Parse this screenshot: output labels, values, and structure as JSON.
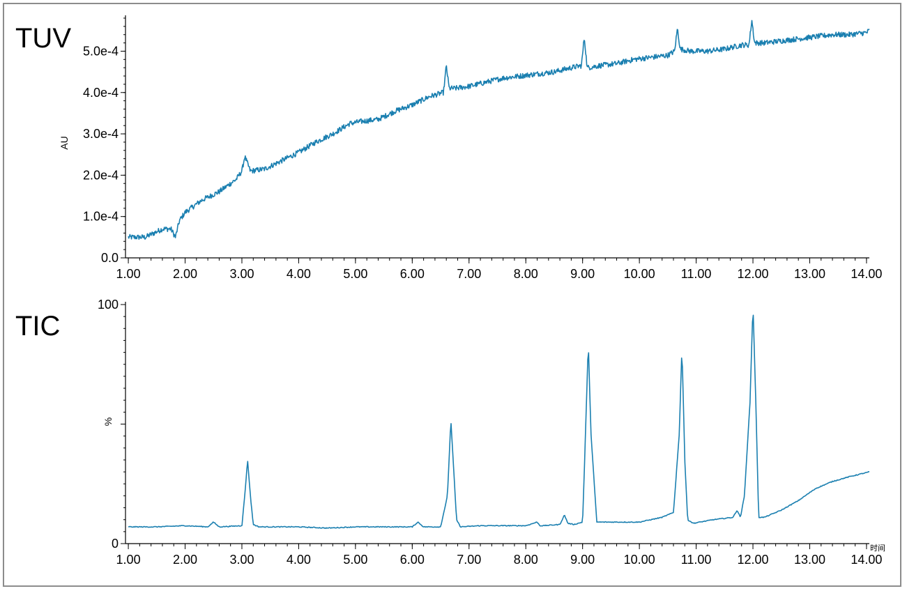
{
  "colors": {
    "trace": "#1a7fb0",
    "axis": "#000000",
    "frame": "#8c8c8c"
  },
  "chart_data": [
    {
      "type": "line",
      "title": "TUV",
      "xlabel": "",
      "ylabel": "AU",
      "xlim": [
        0.95,
        14.05
      ],
      "ylim": [
        0,
        0.00058
      ],
      "x_ticks": [
        1,
        2,
        3,
        4,
        5,
        6,
        7,
        8,
        9,
        10,
        11,
        12,
        13,
        14
      ],
      "x_tick_labels": [
        "1.00",
        "2.00",
        "3.00",
        "4.00",
        "5.00",
        "6.00",
        "7.00",
        "8.00",
        "9.00",
        "10.00",
        "11.00",
        "12.00",
        "13.00",
        "14.00"
      ],
      "y_ticks": [
        0,
        0.0001,
        0.0002,
        0.0003,
        0.0004,
        0.0005
      ],
      "y_tick_labels": [
        "0.0",
        "1.0e-4",
        "2.0e-4",
        "3.0e-4",
        "4.0e-4",
        "5.0e-4"
      ],
      "series": [
        {
          "x": [
            1.0,
            1.3,
            1.6,
            1.75,
            1.83,
            1.9,
            2.0,
            2.3,
            2.6,
            2.9,
            3.0,
            3.05,
            3.15,
            3.4,
            3.7,
            4.0,
            4.3,
            4.6,
            4.9,
            5.1,
            5.4,
            5.7,
            6.0,
            6.3,
            6.55,
            6.6,
            6.65,
            6.75,
            7.0,
            7.3,
            7.6,
            7.9,
            8.2,
            8.5,
            8.8,
            8.98,
            9.03,
            9.08,
            9.3,
            9.6,
            9.9,
            10.2,
            10.5,
            10.62,
            10.67,
            10.72,
            10.9,
            11.2,
            11.5,
            11.8,
            11.93,
            11.98,
            12.03,
            12.2,
            12.5,
            12.8,
            13.1,
            13.4,
            13.7,
            14.0,
            14.05
          ],
          "y": [
            5e-05,
            5e-05,
            7e-05,
            7e-05,
            5e-05,
            9e-05,
            0.00011,
            0.00014,
            0.00016,
            0.00019,
            0.00021,
            0.000245,
            0.00021,
            0.000215,
            0.000235,
            0.000255,
            0.00028,
            0.0003,
            0.000325,
            0.00033,
            0.000335,
            0.000355,
            0.00037,
            0.00039,
            0.0004,
            0.000465,
            0.00041,
            0.00041,
            0.000415,
            0.000425,
            0.000435,
            0.00044,
            0.000445,
            0.00045,
            0.00046,
            0.000465,
            0.000535,
            0.00046,
            0.000465,
            0.00047,
            0.00048,
            0.000485,
            0.00049,
            0.0005,
            0.000555,
            0.000505,
            0.0005,
            0.0005,
            0.000505,
            0.000515,
            0.000515,
            0.000575,
            0.00052,
            0.00052,
            0.000525,
            0.00053,
            0.000535,
            0.00054,
            0.00054,
            0.000545,
            0.00055
          ]
        }
      ]
    },
    {
      "type": "line",
      "title": "TIC",
      "xlabel": "",
      "ylabel": "%",
      "x_unit_label": "时间",
      "xlim": [
        0.95,
        14.05
      ],
      "ylim": [
        0,
        100
      ],
      "x_ticks": [
        1,
        2,
        3,
        4,
        5,
        6,
        7,
        8,
        9,
        10,
        11,
        12,
        13,
        14
      ],
      "x_tick_labels": [
        "1.00",
        "2.00",
        "3.00",
        "4.00",
        "5.00",
        "6.00",
        "7.00",
        "8.00",
        "9.00",
        "10.00",
        "11.00",
        "12.00",
        "13.00",
        "14.00"
      ],
      "y_ticks": [
        0,
        100
      ],
      "y_tick_labels": [
        "0",
        "100"
      ],
      "series": [
        {
          "x": [
            1.0,
            1.5,
            2.0,
            2.4,
            2.5,
            2.6,
            3.0,
            3.05,
            3.1,
            3.15,
            3.2,
            3.3,
            3.6,
            4.0,
            4.5,
            5.0,
            5.5,
            6.0,
            6.1,
            6.2,
            6.5,
            6.62,
            6.68,
            6.72,
            6.78,
            6.85,
            7.2,
            7.6,
            8.0,
            8.2,
            8.25,
            8.3,
            8.6,
            8.68,
            8.74,
            8.85,
            9.0,
            9.05,
            9.1,
            9.15,
            9.25,
            9.6,
            10.0,
            10.4,
            10.6,
            10.7,
            10.75,
            10.8,
            10.85,
            10.95,
            11.3,
            11.65,
            11.72,
            11.78,
            11.85,
            11.95,
            12.0,
            12.05,
            12.1,
            12.2,
            12.5,
            12.8,
            13.1,
            13.4,
            13.7,
            14.05
          ],
          "y": [
            7,
            7,
            7.5,
            7,
            9,
            7,
            7.5,
            20,
            35,
            20,
            8,
            7,
            7,
            7,
            6.5,
            7,
            7,
            7,
            9,
            7,
            7,
            20,
            52,
            35,
            10,
            7,
            7.5,
            7.5,
            7.5,
            9,
            7.5,
            7.5,
            8,
            12,
            8.5,
            8,
            9,
            45,
            84,
            45,
            9,
            9,
            9,
            11,
            13,
            45,
            82,
            35,
            10,
            8.5,
            10,
            11,
            14,
            11,
            20,
            60,
            100,
            60,
            11,
            11,
            14,
            18,
            23,
            26,
            28,
            30
          ]
        }
      ]
    }
  ]
}
